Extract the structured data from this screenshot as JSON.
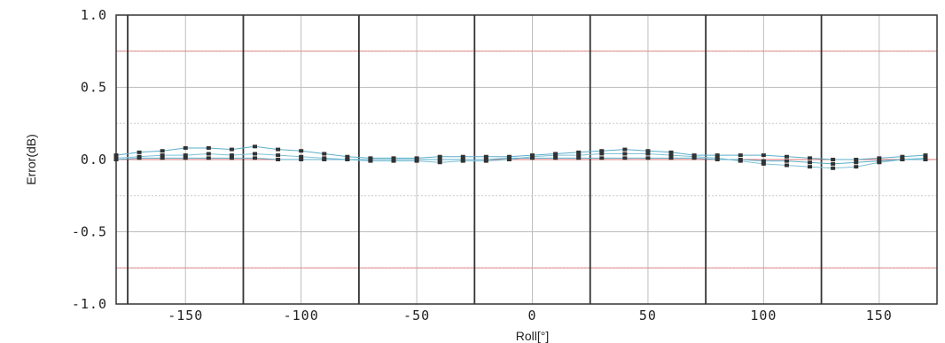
{
  "chart_data": {
    "type": "scatter",
    "xlabel": "Roll[°]",
    "ylabel": "Error(dB)",
    "xlim": [
      -180,
      175
    ],
    "ylim": [
      -1.0,
      1.0
    ],
    "x_ticks": [
      -150,
      -100,
      -50,
      0,
      50,
      100,
      150
    ],
    "y_ticks": [
      1.0,
      0.5,
      0.0,
      -0.5,
      -1.0
    ],
    "y_tick_labels": [
      "1.0",
      "0.5",
      "0.0",
      "-0.5",
      "-1.0"
    ],
    "major_vertical_lines": [
      -175,
      -125,
      -75,
      -25,
      25,
      75,
      125
    ],
    "reference_lines": [
      0.75,
      -0.75
    ],
    "grid": true,
    "colors": {
      "points": "#333333",
      "series_1": "#5aaec9",
      "series_2": "#7fc0d6",
      "reference": "#e07070"
    },
    "series": [
      {
        "x": [
          -180,
          -170,
          -160,
          -150,
          -140,
          -130,
          -120,
          -110,
          -100,
          -90,
          -80,
          -70,
          -60,
          -50,
          -40,
          -30,
          -20,
          -10,
          0,
          10,
          20,
          30,
          40,
          50,
          60,
          70,
          80,
          90,
          100,
          110,
          120,
          130,
          140,
          150,
          160,
          170
        ],
        "y": [
          0.03,
          0.05,
          0.06,
          0.08,
          0.08,
          0.07,
          0.09,
          0.07,
          0.06,
          0.04,
          0.02,
          0.01,
          0.01,
          0.01,
          0.02,
          0.02,
          0.02,
          0.02,
          0.03,
          0.04,
          0.05,
          0.06,
          0.07,
          0.06,
          0.05,
          0.03,
          0.03,
          0.03,
          0.03,
          0.02,
          0.01,
          0.0,
          0.0,
          0.01,
          0.02,
          0.03
        ]
      },
      {
        "x": [
          -180,
          -170,
          -160,
          -150,
          -140,
          -130,
          -120,
          -110,
          -100,
          -90,
          -80,
          -70,
          -60,
          -50,
          -40,
          -30,
          -20,
          -10,
          0,
          10,
          20,
          30,
          40,
          50,
          60,
          70,
          80,
          90,
          100,
          110,
          120,
          130,
          140,
          150,
          160,
          170
        ],
        "y": [
          0.01,
          0.02,
          0.03,
          0.03,
          0.04,
          0.03,
          0.04,
          0.03,
          0.02,
          0.01,
          0.0,
          -0.01,
          -0.01,
          -0.01,
          -0.02,
          -0.01,
          -0.01,
          0.0,
          0.02,
          0.03,
          0.03,
          0.04,
          0.04,
          0.04,
          0.03,
          0.02,
          0.01,
          -0.01,
          -0.03,
          -0.04,
          -0.05,
          -0.06,
          -0.05,
          -0.02,
          0.0,
          0.01
        ]
      },
      {
        "x": [
          -180,
          -170,
          -160,
          -150,
          -140,
          -130,
          -120,
          -110,
          -100,
          -90,
          -80,
          -70,
          -60,
          -50,
          -40,
          -30,
          -20,
          -10,
          0,
          10,
          20,
          30,
          40,
          50,
          60,
          70,
          80,
          90,
          100,
          110,
          120,
          130,
          140,
          150,
          160,
          170
        ],
        "y": [
          0.0,
          0.01,
          0.01,
          0.01,
          0.01,
          0.01,
          0.01,
          0.0,
          0.0,
          0.0,
          0.0,
          0.0,
          0.0,
          0.0,
          0.0,
          0.0,
          0.0,
          0.01,
          0.01,
          0.01,
          0.01,
          0.01,
          0.01,
          0.01,
          0.01,
          0.01,
          0.0,
          0.0,
          -0.01,
          -0.01,
          -0.02,
          -0.03,
          -0.02,
          -0.01,
          0.0,
          0.0
        ]
      }
    ]
  }
}
